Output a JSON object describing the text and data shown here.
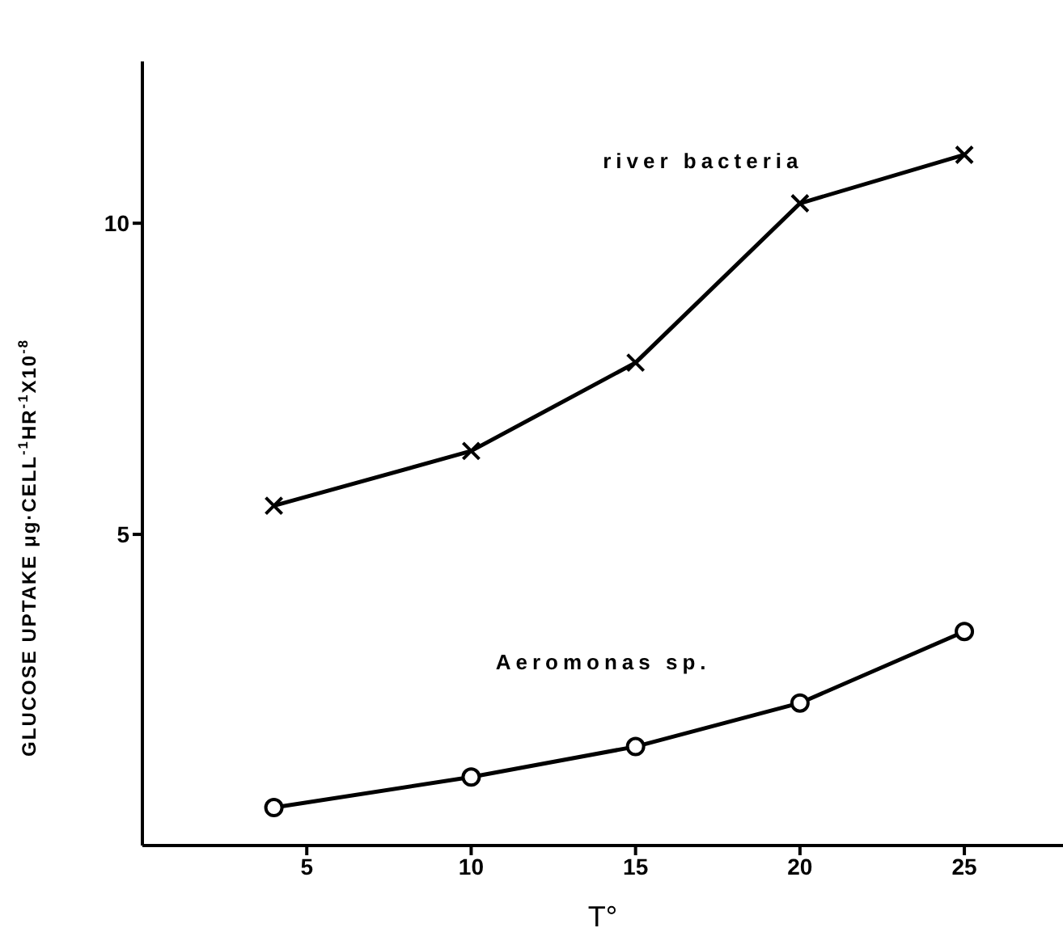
{
  "chart_data": {
    "type": "line",
    "xlabel": "T°",
    "ylabel": "GLUCOSE UPTAKE μg·CELL$^{-1}$HR$^{-1}$X10$^{-8}$",
    "x": [
      4,
      10,
      15,
      20,
      25
    ],
    "series": [
      {
        "name": "river bacteria",
        "color": "#000000",
        "marker": "cross",
        "values": [
          5.46,
          6.34,
          7.76,
          10.32,
          11.1
        ]
      },
      {
        "name": "Aeromonas sp.",
        "color": "#000000",
        "marker": "circle",
        "values": [
          0.61,
          1.1,
          1.59,
          2.29,
          3.44
        ]
      }
    ],
    "xlim": [
      0,
      28
    ],
    "xticks": [
      5,
      10,
      15,
      20,
      25
    ],
    "ylim": [
      0,
      12.6
    ],
    "yticks": [
      5,
      10
    ],
    "grid": false,
    "legend": false,
    "line_style": "solid"
  }
}
